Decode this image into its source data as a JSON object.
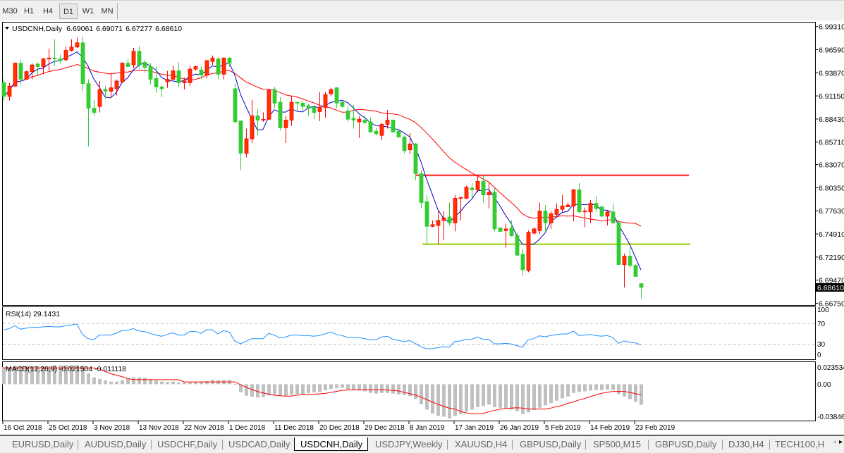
{
  "toolbar": {
    "timeframes": [
      {
        "label": "M30"
      },
      {
        "label": "H1"
      },
      {
        "label": "H4"
      },
      {
        "label": "D1"
      },
      {
        "label": "W1"
      },
      {
        "label": "MN"
      }
    ],
    "active": "D1"
  },
  "chart": {
    "symbol_label": "USDCNH,Daily",
    "open": "6.69061",
    "high": "6.69071",
    "low": "6.67277",
    "close": "6.68610"
  },
  "chart_data": {
    "type": "candlestick",
    "colors": {
      "up": "#ff3300",
      "up_border": "#ff0000",
      "down": "#33cc33",
      "ma_fast": "#0000cc",
      "ma_slow": "#ff0000"
    },
    "ohlc": [
      [
        6.927,
        6.931,
        6.906,
        6.911
      ],
      [
        6.911,
        6.927,
        6.906,
        6.923
      ],
      [
        6.923,
        6.951,
        6.922,
        6.95
      ],
      [
        6.95,
        6.954,
        6.925,
        6.931
      ],
      [
        6.931,
        6.941,
        6.931,
        6.94
      ],
      [
        6.94,
        6.95,
        6.931,
        6.948
      ],
      [
        6.949,
        6.951,
        6.936,
        6.946
      ],
      [
        6.946,
        6.956,
        6.937,
        6.955
      ],
      [
        6.955,
        6.967,
        6.941,
        6.956
      ],
      [
        6.956,
        6.978,
        6.947,
        6.955
      ],
      [
        6.955,
        6.96,
        6.95,
        6.953
      ],
      [
        6.954,
        6.969,
        6.952,
        6.965
      ],
      [
        6.965,
        6.978,
        6.964,
        6.969
      ],
      [
        6.969,
        6.98,
        6.968,
        6.974
      ],
      [
        6.974,
        6.981,
        6.917,
        6.926
      ],
      [
        6.926,
        6.931,
        6.852,
        6.897
      ],
      [
        6.897,
        6.907,
        6.888,
        6.892
      ],
      [
        6.899,
        6.929,
        6.892,
        6.919
      ],
      [
        6.919,
        6.923,
        6.908,
        6.917
      ],
      [
        6.917,
        6.939,
        6.909,
        6.921
      ],
      [
        6.92,
        6.931,
        6.912,
        6.929
      ],
      [
        6.928,
        6.951,
        6.927,
        6.95
      ],
      [
        6.95,
        6.955,
        6.946,
        6.946
      ],
      [
        6.948,
        6.968,
        6.944,
        6.964
      ],
      [
        6.964,
        6.97,
        6.944,
        6.948
      ],
      [
        6.951,
        6.954,
        6.939,
        6.945
      ],
      [
        6.946,
        6.95,
        6.925,
        6.931
      ],
      [
        6.932,
        6.946,
        6.915,
        6.922
      ],
      [
        6.922,
        6.924,
        6.91,
        6.92
      ],
      [
        6.928,
        6.941,
        6.921,
        6.931
      ],
      [
        6.931,
        6.947,
        6.93,
        6.941
      ],
      [
        6.941,
        6.951,
        6.922,
        6.927
      ],
      [
        6.927,
        6.933,
        6.919,
        6.929
      ],
      [
        6.927,
        6.947,
        6.923,
        6.943
      ],
      [
        6.943,
        6.947,
        6.941,
        6.946
      ],
      [
        6.942,
        6.946,
        6.931,
        6.936
      ],
      [
        6.936,
        6.954,
        6.932,
        6.953
      ],
      [
        6.952,
        6.959,
        6.948,
        6.956
      ],
      [
        6.955,
        6.957,
        6.931,
        6.937
      ],
      [
        6.937,
        6.957,
        6.931,
        6.956
      ],
      [
        6.956,
        6.957,
        6.946,
        6.95
      ],
      [
        6.92,
        6.926,
        6.879,
        6.881
      ],
      [
        6.882,
        6.883,
        6.824,
        6.844
      ],
      [
        6.844,
        6.873,
        6.839,
        6.861
      ],
      [
        6.861,
        6.907,
        6.856,
        6.888
      ],
      [
        6.888,
        6.896,
        6.865,
        6.883
      ],
      [
        6.883,
        6.892,
        6.881,
        6.884
      ],
      [
        6.884,
        6.92,
        6.883,
        6.918
      ],
      [
        6.919,
        6.922,
        6.897,
        6.903
      ],
      [
        6.904,
        6.91,
        6.871,
        6.874
      ],
      [
        6.874,
        6.888,
        6.856,
        6.883
      ],
      [
        6.883,
        6.912,
        6.876,
        6.904
      ],
      [
        6.904,
        6.904,
        6.894,
        6.903
      ],
      [
        6.903,
        6.906,
        6.893,
        6.899
      ],
      [
        6.9,
        6.902,
        6.888,
        6.897
      ],
      [
        6.898,
        6.901,
        6.884,
        6.892
      ],
      [
        6.893,
        6.916,
        6.882,
        6.898
      ],
      [
        6.898,
        6.916,
        6.886,
        6.913
      ],
      [
        6.914,
        6.921,
        6.911,
        6.919
      ],
      [
        6.921,
        6.922,
        6.897,
        6.903
      ],
      [
        6.904,
        6.906,
        6.898,
        6.899
      ],
      [
        6.894,
        6.9,
        6.881,
        6.884
      ],
      [
        6.885,
        6.901,
        6.873,
        6.883
      ],
      [
        6.881,
        6.888,
        6.862,
        6.884
      ],
      [
        6.883,
        6.888,
        6.879,
        6.88
      ],
      [
        6.881,
        6.886,
        6.869,
        6.869
      ],
      [
        6.87,
        6.874,
        6.865,
        6.867
      ],
      [
        6.865,
        6.88,
        6.859,
        6.878
      ],
      [
        6.878,
        6.895,
        6.873,
        6.883
      ],
      [
        6.883,
        6.884,
        6.868,
        6.869
      ],
      [
        6.87,
        6.871,
        6.863,
        6.863
      ],
      [
        6.863,
        6.865,
        6.844,
        6.847
      ],
      [
        6.848,
        6.868,
        6.843,
        6.855
      ],
      [
        6.855,
        6.856,
        6.812,
        6.82
      ],
      [
        6.82,
        6.824,
        6.779,
        6.786
      ],
      [
        6.787,
        6.795,
        6.737,
        6.758
      ],
      [
        6.758,
        6.765,
        6.757,
        6.76
      ],
      [
        6.759,
        6.777,
        6.737,
        6.765
      ],
      [
        6.765,
        6.776,
        6.742,
        6.768
      ],
      [
        6.769,
        6.786,
        6.759,
        6.762
      ],
      [
        6.762,
        6.795,
        6.752,
        6.791
      ],
      [
        6.791,
        6.792,
        6.765,
        6.792
      ],
      [
        6.791,
        6.806,
        6.79,
        6.804
      ],
      [
        6.803,
        6.809,
        6.791,
        6.801
      ],
      [
        6.801,
        6.819,
        6.798,
        6.811
      ],
      [
        6.811,
        6.818,
        6.786,
        6.795
      ],
      [
        6.795,
        6.81,
        6.779,
        6.798
      ],
      [
        6.798,
        6.803,
        6.752,
        6.755
      ],
      [
        6.756,
        6.757,
        6.751,
        6.752
      ],
      [
        6.753,
        6.761,
        6.733,
        6.755
      ],
      [
        6.756,
        6.765,
        6.746,
        6.747
      ],
      [
        6.747,
        6.751,
        6.723,
        6.724
      ],
      [
        6.725,
        6.731,
        6.7,
        6.707
      ],
      [
        6.706,
        6.753,
        6.704,
        6.751
      ],
      [
        6.75,
        6.757,
        6.748,
        6.755
      ],
      [
        6.753,
        6.786,
        6.749,
        6.776
      ],
      [
        6.776,
        6.783,
        6.751,
        6.762
      ],
      [
        6.762,
        6.776,
        6.755,
        6.773
      ],
      [
        6.772,
        6.785,
        6.768,
        6.778
      ],
      [
        6.778,
        6.795,
        6.775,
        6.782
      ],
      [
        6.781,
        6.786,
        6.781,
        6.783
      ],
      [
        6.782,
        6.802,
        6.764,
        6.801
      ],
      [
        6.801,
        6.809,
        6.774,
        6.775
      ],
      [
        6.775,
        6.78,
        6.757,
        6.776
      ],
      [
        6.775,
        6.789,
        6.762,
        6.785
      ],
      [
        6.785,
        6.794,
        6.775,
        6.779
      ],
      [
        6.781,
        6.781,
        6.769,
        6.77
      ],
      [
        6.77,
        6.776,
        6.759,
        6.775
      ],
      [
        6.775,
        6.785,
        6.761,
        6.762
      ],
      [
        6.762,
        6.765,
        6.713,
        6.713
      ],
      [
        6.713,
        6.726,
        6.686,
        6.723
      ],
      [
        6.723,
        6.733,
        6.709,
        6.712
      ],
      [
        6.712,
        6.713,
        6.699,
        6.699
      ],
      [
        6.69061,
        6.69071,
        6.67277,
        6.6861
      ]
    ],
    "x_tick_labels": [
      "16 Oct 2018",
      "25 Oct 2018",
      "3 Nov 2018",
      "13 Nov 2018",
      "22 Nov 2018",
      "1 Dec 2018",
      "11 Dec 2018",
      "20 Dec 2018",
      "29 Dec 2018",
      "8 Jan 2019",
      "17 Jan 2019",
      "26 Jan 2019",
      "5 Feb 2019",
      "14 Feb 2019",
      "23 Feb 2019"
    ],
    "price_axis": {
      "labels": [
        "6.99310",
        "6.96590",
        "6.93870",
        "6.91150",
        "6.88430",
        "6.85710",
        "6.83070",
        "6.80350",
        "6.77630",
        "6.74910",
        "6.72190",
        "6.69470",
        "6.66750"
      ],
      "current_price": "6.68610"
    },
    "horizontal_lines": [
      {
        "price": 6.818,
        "color": "#ff4040"
      },
      {
        "price": 6.737,
        "color": "#99cc00"
      }
    ],
    "rsi": {
      "label": "RSI(14) 29.1431",
      "color": "#1e90ff",
      "levels": [
        70,
        30
      ],
      "axis_labels": [
        "100",
        "70",
        "30",
        "0"
      ],
      "values": [
        57.6,
        60.2,
        65.6,
        59,
        61,
        62.4,
        62.4,
        63.3,
        64.2,
        63.3,
        63.3,
        65.6,
        66.9,
        68.7,
        49.1,
        41.1,
        38.9,
        47.8,
        47.9,
        47.9,
        51.3,
        56.7,
        56.7,
        60.2,
        55.8,
        54.4,
        50.9,
        47.8,
        45.6,
        49.1,
        52.2,
        47.9,
        47.9,
        54.4,
        55.1,
        50.9,
        57.6,
        58.0,
        50.0,
        56.2,
        53.6,
        36.7,
        31.3,
        35.8,
        41.1,
        41.1,
        41.1,
        50.9,
        47.8,
        42.4,
        44.2,
        47.8,
        47.8,
        46.9,
        46.9,
        45.6,
        46.9,
        50.0,
        53.6,
        49.1,
        46.9,
        43.3,
        43.3,
        43.3,
        41.1,
        38.9,
        38.9,
        44.2,
        45.6,
        39.8,
        38.0,
        35.3,
        37.6,
        32.2,
        25.6,
        22.0,
        22.0,
        24.2,
        25.6,
        24.9,
        35.8,
        36.7,
        39.8,
        39.8,
        44.2,
        39.8,
        39.8,
        31.3,
        31.3,
        32.2,
        30.9,
        27.8,
        24.7,
        38.9,
        41.1,
        46.4,
        44.7,
        46.9,
        48.7,
        50.0,
        50.0,
        55.3,
        46.9,
        47.8,
        49.1,
        46.9,
        45.6,
        46.9,
        43.3,
        32.2,
        36.7,
        34.4,
        33.1,
        29.14
      ]
    },
    "macd": {
      "label": "MACD(12,26,9) -0.021504 -0.011118",
      "histogram_color": "#c0c0c0",
      "signal_color": "#ff0000",
      "axis_labels": [
        "0.023534",
        "0.00",
        "-0.038466"
      ],
      "histogram": [
        0.018,
        0.018,
        0.019,
        0.019,
        0.019,
        0.019,
        0.019,
        0.019,
        0.019,
        0.02,
        0.02,
        0.02,
        0.02,
        0.02,
        0.019,
        0.0114,
        0.0072,
        0.0055,
        0.004,
        0.0028,
        0.0028,
        0.0043,
        0.006,
        0.0072,
        0.0072,
        0.0068,
        0.0055,
        0.004,
        0.0028,
        0.0023,
        0.0028,
        0.0018,
        0.0016,
        0.0018,
        0.0023,
        0.0028,
        0.0033,
        0.0045,
        0.004,
        0.0045,
        0.0045,
        -0.0005,
        -0.0083,
        -0.012,
        -0.013,
        -0.014,
        -0.0135,
        -0.0116,
        -0.0106,
        -0.012,
        -0.012,
        -0.011,
        -0.0104,
        -0.0104,
        -0.0094,
        -0.0086,
        -0.0081,
        -0.0063,
        -0.0049,
        -0.0042,
        -0.0037,
        -0.0054,
        -0.0061,
        -0.0066,
        -0.0074,
        -0.0091,
        -0.0098,
        -0.0091,
        -0.0093,
        -0.0098,
        -0.0106,
        -0.0115,
        -0.0125,
        -0.0155,
        -0.021,
        -0.0266,
        -0.0308,
        -0.0332,
        -0.034,
        -0.0357,
        -0.0332,
        -0.0315,
        -0.0288,
        -0.0266,
        -0.0239,
        -0.0229,
        -0.0214,
        -0.0241,
        -0.0246,
        -0.0258,
        -0.0266,
        -0.0283,
        -0.0312,
        -0.0295,
        -0.027,
        -0.0246,
        -0.0221,
        -0.0199,
        -0.0172,
        -0.0148,
        -0.0128,
        -0.0091,
        -0.0081,
        -0.0074,
        -0.0066,
        -0.0061,
        -0.0061,
        -0.0054,
        -0.0061,
        -0.0103,
        -0.0128,
        -0.0155,
        -0.0184,
        -0.0215
      ],
      "signal": [
        0.0171,
        0.0171,
        0.0171,
        0.0171,
        0.0171,
        0.0171,
        0.0171,
        0.0171,
        0.0171,
        0.0171,
        0.0171,
        0.0171,
        0.0171,
        0.0171,
        0.0171,
        0.0171,
        0.0171,
        0.016,
        0.0135,
        0.011,
        0.0095,
        0.008,
        0.006,
        0.0048,
        0.0048,
        0.0048,
        0.0048,
        0.0048,
        0.0048,
        0.0048,
        0.0048,
        0.0048,
        0.0024,
        0.0024,
        0.0024,
        0.0024,
        0.0024,
        0.0024,
        0.0024,
        0.0024,
        0.0024,
        0.0024,
        -0.0005,
        -0.003,
        -0.0055,
        -0.0075,
        -0.009,
        -0.0105,
        -0.0115,
        -0.012,
        -0.0125,
        -0.0125,
        -0.0115,
        -0.0107,
        -0.0107,
        -0.0104,
        -0.01,
        -0.0097,
        -0.0085,
        -0.0075,
        -0.0066,
        -0.006,
        -0.0058,
        -0.0058,
        -0.0058,
        -0.0058,
        -0.0058,
        -0.0058,
        -0.006,
        -0.0065,
        -0.007,
        -0.0085,
        -0.0098,
        -0.0112,
        -0.0135,
        -0.016,
        -0.0185,
        -0.021,
        -0.023,
        -0.025,
        -0.026,
        -0.0285,
        -0.03,
        -0.031,
        -0.031,
        -0.0305,
        -0.029,
        -0.0275,
        -0.026,
        -0.0255,
        -0.025,
        -0.0246,
        -0.025,
        -0.026,
        -0.026,
        -0.026,
        -0.026,
        -0.025,
        -0.0235,
        -0.0223,
        -0.02,
        -0.0185,
        -0.0165,
        -0.0149,
        -0.013,
        -0.0112,
        -0.0095,
        -0.0085,
        -0.0075,
        -0.0075,
        -0.0075,
        -0.0085,
        -0.0098,
        -0.0111
      ]
    }
  },
  "tabs": {
    "items": [
      "EURUSD,Daily",
      "AUDUSD,Daily",
      "USDCHF,Daily",
      "USDCAD,Daily",
      "USDCNH,Daily",
      "USDJPY,Weekly",
      "XAUUSD,H4",
      "GBPUSD,Daily",
      "SP500,M15",
      "GBPUSD,Daily",
      "DJ30,H4",
      "TECH100,H"
    ],
    "active": "USDCNH,Daily"
  }
}
